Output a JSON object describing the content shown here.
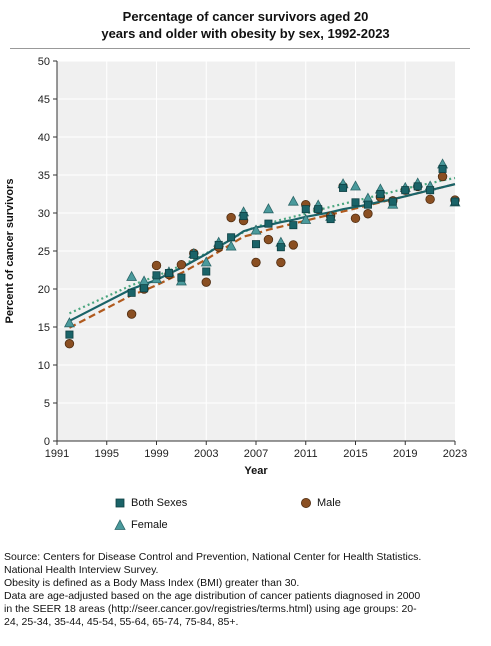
{
  "header": {
    "title_line1": "Percentage of cancer survivors aged 20",
    "title_line2": "years and older with obesity by sex, 1992-2023"
  },
  "colors": {
    "both_sexes": "#1a6368",
    "male": "#8a4f22",
    "female": "#4a9a9c",
    "both_sexes_line": "#1a6368",
    "male_line": "#b05a1e",
    "female_line": "#4aa67f",
    "plot_background": "#f0f0f0",
    "grid": "#ffffff"
  },
  "chart_data": {
    "type": "scatter",
    "title": "Percentage of cancer survivors aged 20 years and older with obesity by sex, 1992-2023",
    "xlabel": "Year",
    "ylabel": "Percent of cancer survivors",
    "xlim": [
      1991,
      2023
    ],
    "ylim": [
      0,
      50
    ],
    "x_ticks": [
      "1991",
      "1995",
      "1999",
      "2003",
      "2007",
      "2011",
      "2015",
      "2019",
      "2023"
    ],
    "y_ticks": [
      "0",
      "5",
      "10",
      "15",
      "20",
      "25",
      "30",
      "35",
      "40",
      "45",
      "50"
    ],
    "grid": true,
    "legend_placement": "bottom",
    "series": [
      {
        "name": "Both Sexes",
        "marker": "square",
        "x": [
          1992,
          1997,
          1998,
          1999,
          2000,
          2001,
          2002,
          2003,
          2004,
          2005,
          2006,
          2007,
          2008,
          2009,
          2010,
          2011,
          2012,
          2013,
          2014,
          2015,
          2016,
          2017,
          2018,
          2019,
          2020,
          2021,
          2022,
          2023
        ],
        "y": [
          14.0,
          19.5,
          20.1,
          21.8,
          22.1,
          21.5,
          24.5,
          22.3,
          25.8,
          26.8,
          29.6,
          25.9,
          28.6,
          25.5,
          28.4,
          30.5,
          30.5,
          29.2,
          33.3,
          31.4,
          31.1,
          32.5,
          31.5,
          33.0,
          33.5,
          33.0,
          35.8,
          31.5
        ],
        "trend": [
          15.8,
          20.0,
          20.6,
          21.2,
          22.0,
          22.8,
          23.7,
          24.6,
          25.6,
          26.5,
          27.6,
          28.1,
          28.4,
          28.8,
          29.1,
          29.5,
          29.8,
          30.1,
          30.5,
          30.8,
          31.1,
          31.5,
          31.8,
          32.2,
          32.6,
          33.0,
          33.4,
          33.8
        ]
      },
      {
        "name": "Male",
        "marker": "circle",
        "x": [
          1992,
          1997,
          1998,
          1999,
          2000,
          2001,
          2002,
          2003,
          2004,
          2005,
          2006,
          2007,
          2008,
          2009,
          2010,
          2011,
          2012,
          2013,
          2014,
          2015,
          2016,
          2017,
          2018,
          2019,
          2020,
          2021,
          2022,
          2023
        ],
        "y": [
          12.8,
          16.7,
          20.0,
          23.1,
          21.9,
          23.2,
          24.7,
          20.9,
          25.5,
          29.4,
          29.0,
          23.5,
          26.5,
          23.5,
          25.8,
          31.1,
          30.5,
          29.6,
          33.5,
          29.3,
          29.9,
          32.1,
          31.6,
          33.0,
          33.5,
          31.8,
          34.8,
          31.7
        ],
        "trend": [
          14.9,
          19.2,
          19.8,
          20.5,
          21.3,
          22.1,
          23.0,
          23.9,
          24.9,
          25.9,
          26.9,
          27.3,
          27.8,
          28.2,
          28.6,
          29.0,
          29.4,
          29.8,
          30.2,
          30.6,
          31.0,
          31.4,
          31.8,
          32.2,
          32.6,
          33.0,
          33.4,
          33.8
        ]
      },
      {
        "name": "Female",
        "marker": "triangle",
        "x": [
          1992,
          1997,
          1998,
          1999,
          2000,
          2001,
          2002,
          2003,
          2004,
          2005,
          2006,
          2007,
          2008,
          2009,
          2010,
          2011,
          2012,
          2013,
          2014,
          2015,
          2016,
          2017,
          2018,
          2019,
          2020,
          2021,
          2022,
          2023
        ],
        "y": [
          15.5,
          21.6,
          21.0,
          21.3,
          22.2,
          21.0,
          24.6,
          23.5,
          26.1,
          25.6,
          30.1,
          27.7,
          30.5,
          26.1,
          31.5,
          29.1,
          31.0,
          29.5,
          33.8,
          33.5,
          31.9,
          33.1,
          31.1,
          33.3,
          33.9,
          33.5,
          36.4,
          31.4
        ],
        "trend": [
          16.8,
          20.5,
          21.1,
          21.7,
          22.4,
          23.1,
          23.9,
          24.7,
          25.6,
          26.5,
          27.5,
          28.2,
          28.6,
          29.1,
          29.5,
          29.9,
          30.4,
          30.8,
          31.2,
          31.6,
          32.0,
          32.4,
          32.8,
          33.2,
          33.6,
          33.9,
          34.3,
          34.6
        ]
      }
    ]
  },
  "legend": {
    "both_sexes": "Both Sexes",
    "male": "Male",
    "female": "Female"
  },
  "notes": {
    "line1": "Source: Centers for Disease Control and Prevention, National Center for Health Statistics.",
    "line2": "National Health Interview Survey.",
    "line3": "Obesity is defined as a Body Mass Index (BMI) greater than 30.",
    "line4": "Data are age-adjusted based on the age distribution of cancer patients diagnosed in 2000",
    "line5": "in the SEER 18 areas (http://seer.cancer.gov/registries/terms.html) using age groups: 20-",
    "line6": "24, 25-34, 35-44, 45-54, 55-64, 65-74, 75-84, 85+."
  }
}
